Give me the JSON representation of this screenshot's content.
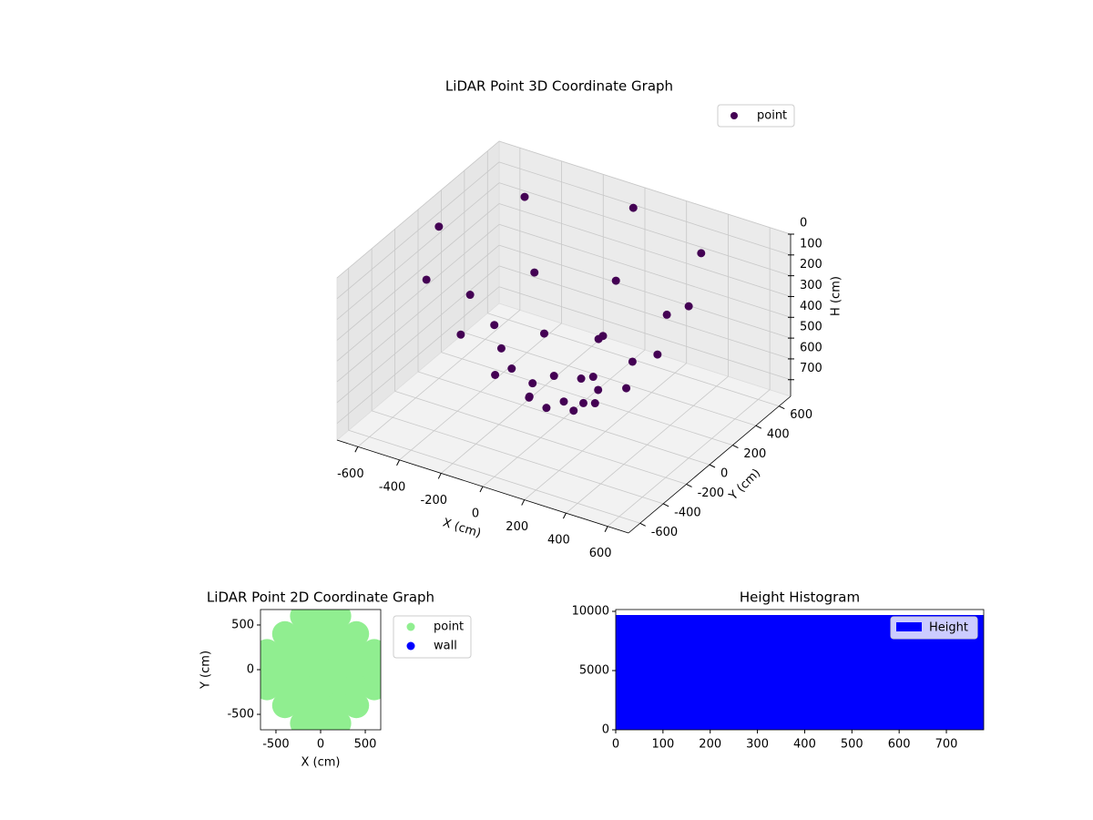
{
  "chart_data": [
    {
      "type": "scatter3d",
      "title": "LiDAR Point 3D Coordinate Graph",
      "xlabel": "X (cm)",
      "ylabel": "Y (cm)",
      "zlabel": "H (cm)",
      "xlim": [
        -700,
        700
      ],
      "ylim": [
        -700,
        700
      ],
      "zlim": [
        0,
        780
      ],
      "z_inverted": true,
      "xticks": [
        -600,
        -400,
        -200,
        0,
        200,
        400,
        600
      ],
      "yticks": [
        -600,
        -400,
        -200,
        0,
        200,
        400,
        600
      ],
      "zticks": [
        0,
        100,
        200,
        300,
        400,
        500,
        600,
        700
      ],
      "grid": true,
      "legend": "upper right",
      "series": [
        {
          "name": "point",
          "color": "#440154",
          "x": [
            600,
            450,
            300,
            150,
            424,
            318,
            212,
            106,
            0,
            0,
            0,
            0,
            -424,
            -318,
            -212,
            -106,
            -600,
            -450,
            -300,
            -150,
            -424,
            -318,
            -212,
            -106,
            0,
            0,
            0,
            0,
            424,
            318,
            212,
            106,
            0
          ],
          "y": [
            0,
            0,
            0,
            0,
            424,
            318,
            212,
            106,
            600,
            450,
            300,
            150,
            424,
            318,
            212,
            106,
            0,
            0,
            0,
            0,
            -424,
            -318,
            -212,
            -106,
            -600,
            -450,
            -300,
            -150,
            -424,
            -318,
            -212,
            -106,
            0
          ],
          "z": [
            50,
            330,
            540,
            660,
            50,
            330,
            540,
            660,
            50,
            330,
            540,
            660,
            50,
            330,
            540,
            660,
            50,
            330,
            540,
            660,
            50,
            330,
            540,
            660,
            50,
            330,
            540,
            660,
            50,
            330,
            540,
            660,
            700
          ]
        }
      ]
    },
    {
      "type": "scatter",
      "title": "LiDAR Point 2D Coordinate Graph",
      "xlabel": "X (cm)",
      "ylabel": "Y (cm)",
      "xlim": [
        -673,
        673
      ],
      "ylim": [
        -673,
        673
      ],
      "xticks": [
        -500,
        0,
        500
      ],
      "yticks": [
        -500,
        0,
        500
      ],
      "legend": "outside right",
      "series": [
        {
          "name": "point",
          "color": "#90ee90",
          "x": [
            -200,
            0,
            200,
            -400,
            -200,
            0,
            200,
            400,
            -600,
            -400,
            -200,
            0,
            200,
            400,
            600,
            -600,
            -400,
            -200,
            0,
            200,
            400,
            600,
            -600,
            -400,
            -200,
            0,
            200,
            400,
            600,
            -400,
            -200,
            0,
            200,
            400,
            -200,
            0,
            200
          ],
          "y": [
            600,
            600,
            600,
            400,
            400,
            400,
            400,
            400,
            200,
            200,
            200,
            200,
            200,
            200,
            200,
            0,
            0,
            0,
            0,
            0,
            0,
            0,
            -200,
            -200,
            -200,
            -200,
            -200,
            -200,
            -200,
            -400,
            -400,
            -400,
            -400,
            -400,
            -600,
            -600,
            -600
          ]
        },
        {
          "name": "wall",
          "color": "#0000ff",
          "x": [],
          "y": []
        }
      ]
    },
    {
      "type": "histogram",
      "title": "Height Histogram",
      "label": "Height",
      "color": "#0000ff",
      "bins": [
        0,
        779
      ],
      "values": [
        9692
      ],
      "xlim": [
        0,
        779
      ],
      "ylim": [
        0,
        10154
      ],
      "xticks": [
        0,
        100,
        200,
        300,
        400,
        500,
        600,
        700
      ],
      "yticks": [
        0,
        5000,
        10000
      ],
      "legend": "upper right"
    }
  ]
}
